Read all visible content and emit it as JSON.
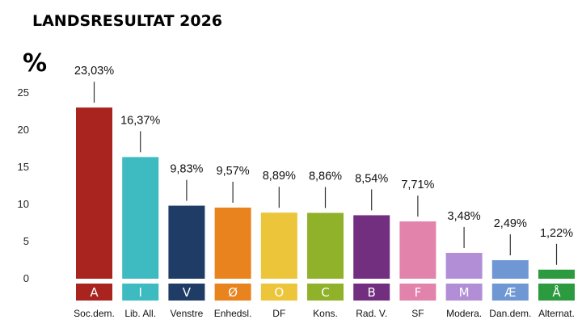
{
  "chart_data": {
    "type": "bar",
    "title": "LANDSRESULTAT 2026",
    "ylabel": "%",
    "ylim": [
      0,
      25
    ],
    "yticks": [
      0,
      5,
      10,
      15,
      20,
      25
    ],
    "grid": false,
    "parties": [
      {
        "letter": "A",
        "name": "Soc.dem.",
        "value": 23.03,
        "value_label": "23,03%",
        "color": "#a9231f"
      },
      {
        "letter": "I",
        "name": "Lib. All.",
        "value": 16.37,
        "value_label": "16,37%",
        "color": "#3ebac1"
      },
      {
        "letter": "V",
        "name": "Venstre",
        "value": 9.83,
        "value_label": "9,83%",
        "color": "#1f3c66"
      },
      {
        "letter": "Ø",
        "name": "Enhedsl.",
        "value": 9.57,
        "value_label": "9,57%",
        "color": "#e8831d"
      },
      {
        "letter": "O",
        "name": "DF",
        "value": 8.89,
        "value_label": "8,89%",
        "color": "#ecc53a"
      },
      {
        "letter": "C",
        "name": "Kons.",
        "value": 8.86,
        "value_label": "8,86%",
        "color": "#8fb22a"
      },
      {
        "letter": "B",
        "name": "Rad. V.",
        "value": 8.54,
        "value_label": "8,54%",
        "color": "#722f7f"
      },
      {
        "letter": "F",
        "name": "SF",
        "value": 7.71,
        "value_label": "7,71%",
        "color": "#e283ac"
      },
      {
        "letter": "M",
        "name": "Modera.",
        "value": 3.48,
        "value_label": "3,48%",
        "color": "#b28ed6"
      },
      {
        "letter": "Æ",
        "name": "Dan.dem.",
        "value": 2.49,
        "value_label": "2,49%",
        "color": "#6f97d3"
      },
      {
        "letter": "Å",
        "name": "Alternat.",
        "value": 1.22,
        "value_label": "1,22%",
        "color": "#2c9b3f"
      }
    ]
  }
}
